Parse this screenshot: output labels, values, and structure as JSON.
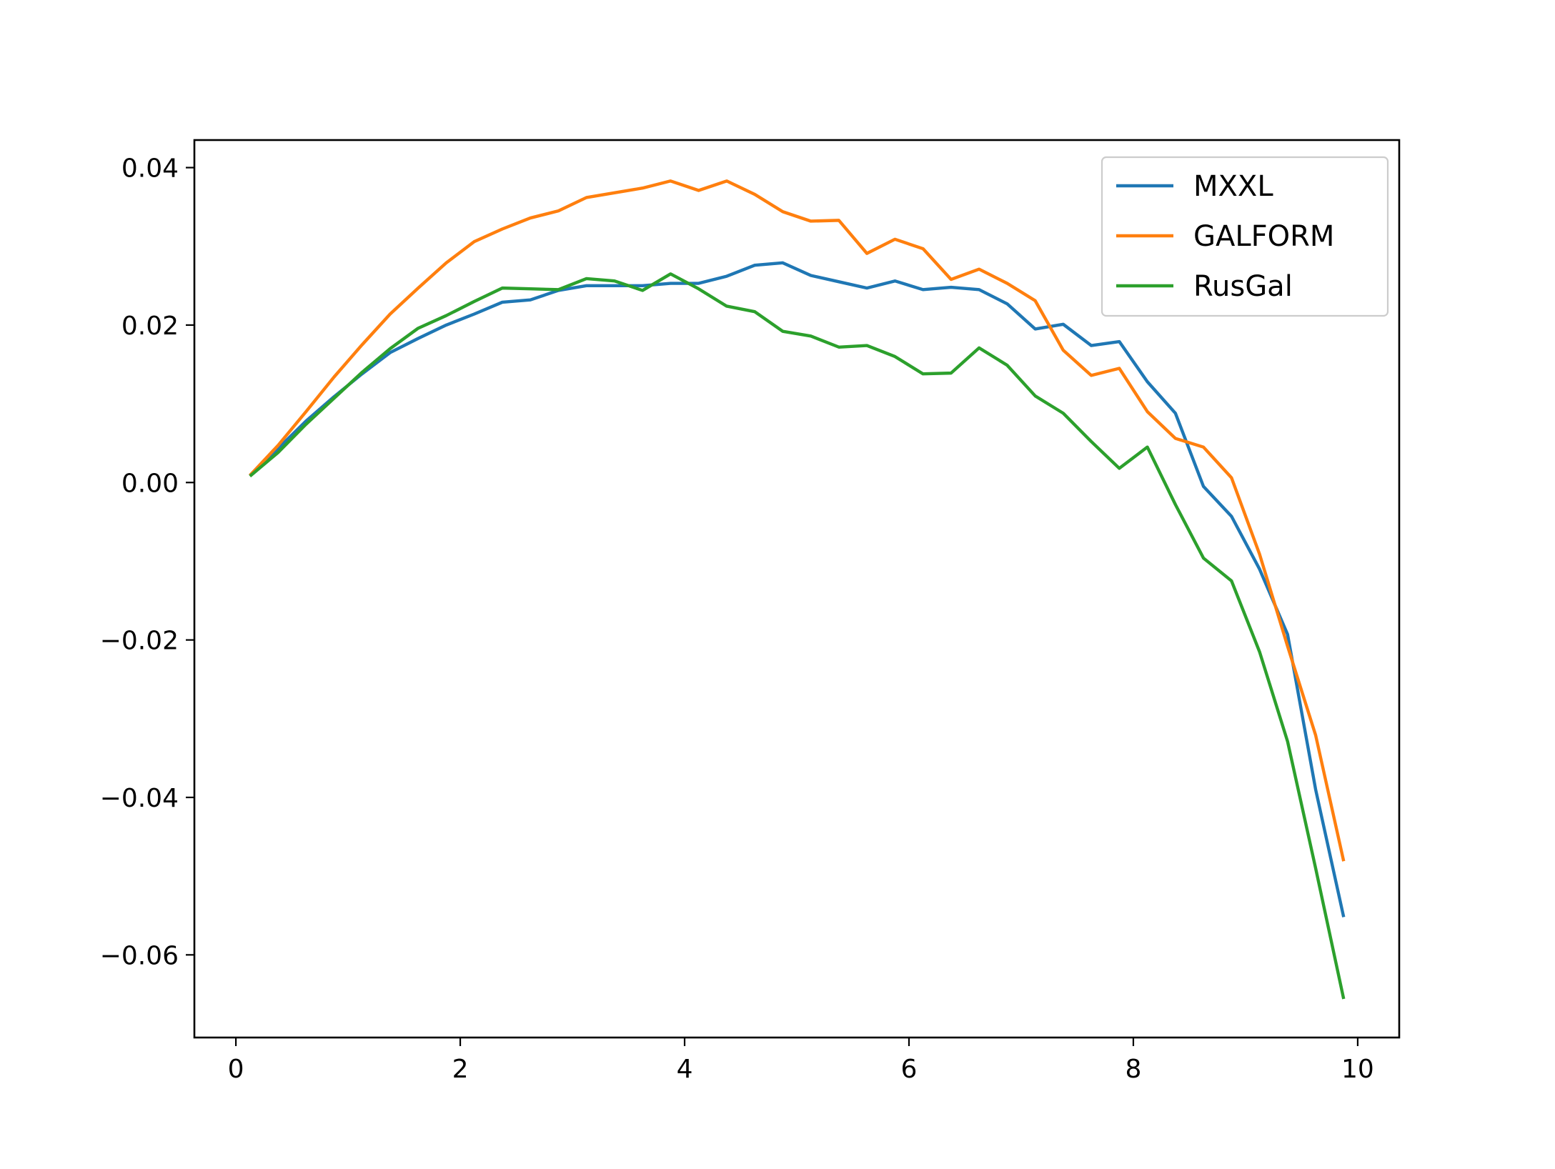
{
  "chart_data": {
    "type": "line",
    "title": "",
    "xlabel": "",
    "ylabel": "",
    "xlim": [
      -0.37,
      10.37
    ],
    "ylim": [
      -0.0705,
      0.0435
    ],
    "grid": false,
    "legend_position": "upper right",
    "x_ticks": [
      0,
      2,
      4,
      6,
      8,
      10
    ],
    "x_tick_labels": [
      "0",
      "2",
      "4",
      "6",
      "8",
      "10"
    ],
    "y_ticks": [
      0.04,
      0.02,
      0.0,
      -0.02,
      -0.04,
      -0.06
    ],
    "y_tick_labels": [
      "0.04",
      "0.02",
      "0.00",
      "−0.02",
      "−0.04",
      "−0.06"
    ],
    "x": [
      0.125,
      0.375,
      0.625,
      0.875,
      1.125,
      1.375,
      1.625,
      1.875,
      2.125,
      2.375,
      2.625,
      2.875,
      3.125,
      3.375,
      3.625,
      3.875,
      4.125,
      4.375,
      4.625,
      4.875,
      5.125,
      5.375,
      5.625,
      5.875,
      6.125,
      6.375,
      6.625,
      6.875,
      7.125,
      7.375,
      7.625,
      7.875,
      8.125,
      8.375,
      8.625,
      8.875,
      9.125,
      9.375,
      9.625,
      9.875
    ],
    "series": [
      {
        "name": "MXXL",
        "color": "#1f77b4",
        "values": [
          0.0009,
          0.0043,
          0.0078,
          0.0109,
          0.0138,
          0.0165,
          0.0183,
          0.02,
          0.0214,
          0.0229,
          0.0232,
          0.0244,
          0.025,
          0.025,
          0.025,
          0.0253,
          0.0253,
          0.0262,
          0.0276,
          0.0279,
          0.0263,
          0.0255,
          0.0247,
          0.0256,
          0.0245,
          0.0248,
          0.0245,
          0.0227,
          0.0195,
          0.0201,
          0.0174,
          0.0179,
          0.0128,
          0.0088,
          -0.0005,
          -0.0043,
          -0.011,
          -0.0193,
          -0.039,
          -0.0552
        ]
      },
      {
        "name": "GALFORM",
        "color": "#ff7f0e",
        "values": [
          0.0009,
          0.0047,
          0.009,
          0.0134,
          0.0175,
          0.0214,
          0.0247,
          0.0279,
          0.0306,
          0.0322,
          0.0336,
          0.0345,
          0.0362,
          0.0368,
          0.0374,
          0.0383,
          0.0371,
          0.0383,
          0.0366,
          0.0344,
          0.0332,
          0.0333,
          0.0291,
          0.0309,
          0.0297,
          0.0258,
          0.0271,
          0.0253,
          0.0231,
          0.0168,
          0.0136,
          0.0145,
          0.009,
          0.0056,
          0.0045,
          0.0006,
          -0.0091,
          -0.0208,
          -0.0321,
          -0.0481
        ]
      },
      {
        "name": "RusGal",
        "color": "#2ca02c",
        "values": [
          0.0008,
          0.0038,
          0.0074,
          0.0107,
          0.014,
          0.017,
          0.0196,
          0.0212,
          0.023,
          0.0247,
          0.0246,
          0.0245,
          0.0259,
          0.0256,
          0.0244,
          0.0265,
          0.0246,
          0.0224,
          0.0217,
          0.0192,
          0.0186,
          0.0172,
          0.0174,
          0.016,
          0.0138,
          0.0139,
          0.0171,
          0.0149,
          0.011,
          0.0088,
          0.0052,
          0.0018,
          0.0045,
          -0.0028,
          -0.0096,
          -0.0125,
          -0.0215,
          -0.0329,
          -0.049,
          -0.0656
        ]
      }
    ]
  }
}
